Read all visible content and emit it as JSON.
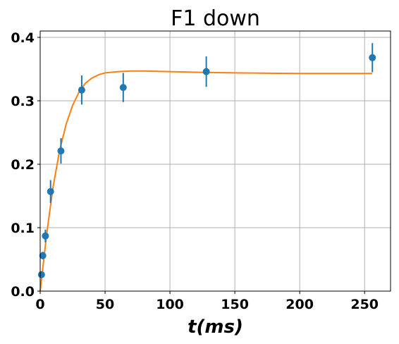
{
  "chart_data": {
    "type": "scatter",
    "title": "F1 down",
    "xlabel": "t(ms)",
    "ylabel": "",
    "xlim": [
      0,
      270
    ],
    "ylim": [
      0,
      0.41
    ],
    "x_ticks": [
      0,
      50,
      100,
      150,
      200,
      250
    ],
    "y_ticks": [
      0.0,
      0.1,
      0.2,
      0.3,
      0.4
    ],
    "x_tick_labels": [
      "0",
      "50",
      "100",
      "150",
      "200",
      "250"
    ],
    "y_tick_labels": [
      "0.0",
      "0.1",
      "0.2",
      "0.3",
      "0.4"
    ],
    "grid": true,
    "legend": "none",
    "series": [
      {
        "kind": "errorbar-points",
        "color": "#1f77b4",
        "x": [
          1,
          2,
          4,
          8,
          16,
          32,
          64,
          128,
          256
        ],
        "y": [
          0.026,
          0.056,
          0.087,
          0.157,
          0.221,
          0.317,
          0.321,
          0.346,
          0.368
        ],
        "yerr": [
          0.004,
          0.006,
          0.01,
          0.018,
          0.02,
          0.023,
          0.023,
          0.024,
          0.023
        ]
      },
      {
        "kind": "fit-line",
        "color": "#ff7f0e",
        "x": [
          0,
          5,
          10,
          15,
          20,
          25,
          30,
          35,
          40,
          45,
          50,
          55,
          60,
          70,
          80,
          100,
          120,
          150,
          200,
          256
        ],
        "y": [
          0.0,
          0.09,
          0.165,
          0.222,
          0.263,
          0.293,
          0.314,
          0.328,
          0.336,
          0.341,
          0.344,
          0.345,
          0.346,
          0.347,
          0.347,
          0.346,
          0.345,
          0.344,
          0.343,
          0.343
        ]
      }
    ]
  }
}
